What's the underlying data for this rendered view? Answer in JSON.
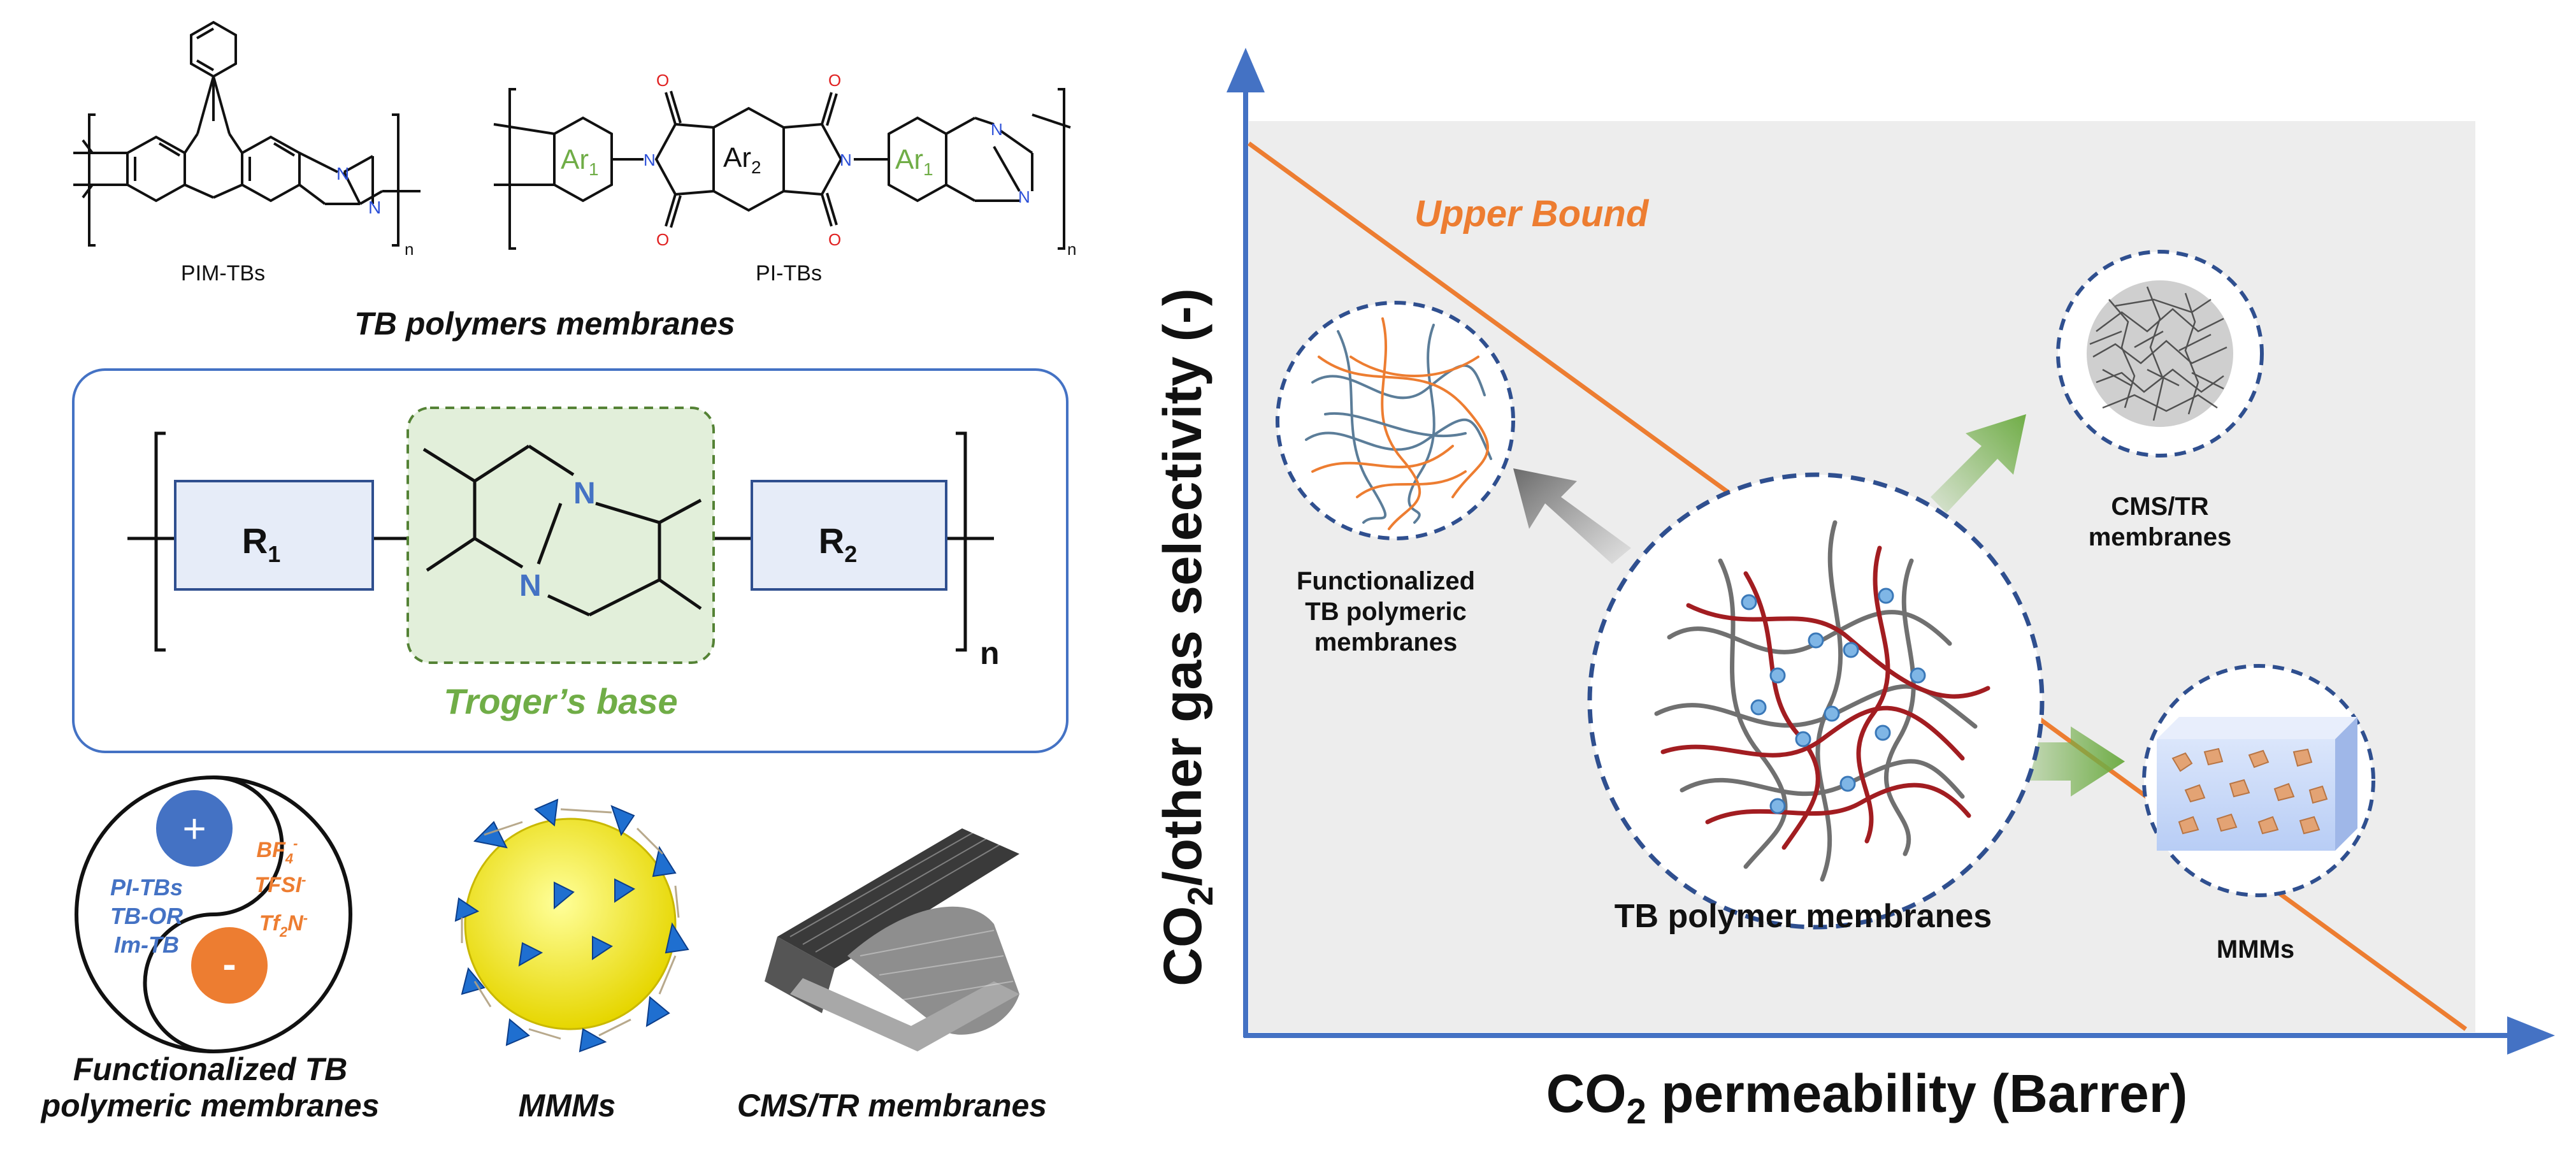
{
  "left": {
    "structures": {
      "pim_label": "PIM-TBs",
      "pi_label": "PI-TBs",
      "ar1": "Ar",
      "ar1_sub": "1",
      "ar2": "Ar",
      "ar2_sub": "2",
      "n_atom": "N",
      "o_atom": "O",
      "repeat_n": "n",
      "section_title": "TB polymers membranes"
    },
    "core": {
      "r1": "R",
      "r1_sub": "1",
      "r2": "R",
      "r2_sub": "2",
      "n_atom": "N",
      "repeat_n": "n",
      "caption": "Troger’s base"
    },
    "functionalized": {
      "plus": "+",
      "minus": "-",
      "cations": [
        "PI-TBs",
        "TB-OR",
        "Im-TB"
      ],
      "anions": [
        "BF",
        "TFSI",
        "Tf",
        "N"
      ],
      "caption_line1": "Functionalized TB",
      "caption_line2": "polymeric membranes"
    },
    "mmms_caption": "MMMs",
    "cms_caption": "CMS/TR membranes"
  },
  "plot": {
    "y_axis_label_pre": "CO",
    "y_axis_label_sub": "2",
    "y_axis_label_post": "/other gas selectivity (-)",
    "x_axis_label_pre": "CO",
    "x_axis_label_sub": "2",
    "x_axis_label_post": " permeability (Barrer)",
    "upper_bound": "Upper Bound",
    "center_label": "TB polymer membranes",
    "functionalized_label": [
      "Functionalized",
      "TB polymeric",
      "membranes"
    ],
    "cms_label": [
      "CMS/TR",
      "membranes"
    ],
    "mmms_label": "MMMs"
  },
  "colors": {
    "axis_blue": "#4472c4",
    "orange": "#ed7d31",
    "green_text": "#70ad47",
    "dark_blue_dashed": "#2f4f8f",
    "bg_gray": "#eeeeee",
    "text_blue": "#4472c4"
  }
}
